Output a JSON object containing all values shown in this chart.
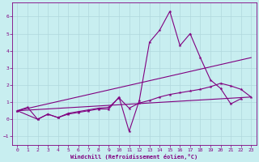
{
  "xlabel": "Windchill (Refroidissement éolien,°C)",
  "background_color": "#c8eef0",
  "line_color": "#800080",
  "grid_color": "#b0d8dc",
  "xlim": [
    -0.5,
    23.5
  ],
  "ylim": [
    -1.5,
    6.8
  ],
  "yticks": [
    -1,
    0,
    1,
    2,
    3,
    4,
    5,
    6
  ],
  "xticks": [
    0,
    1,
    2,
    3,
    4,
    5,
    6,
    7,
    8,
    9,
    10,
    11,
    12,
    13,
    14,
    15,
    16,
    17,
    18,
    19,
    20,
    21,
    22,
    23
  ],
  "series": [
    {
      "x": [
        0,
        1,
        2,
        3,
        4,
        5,
        6,
        7,
        8,
        9,
        10,
        11,
        12,
        13,
        14,
        15,
        16,
        17,
        18,
        19,
        20,
        21,
        22,
        23
      ],
      "y": [
        0.5,
        0.7,
        0.0,
        0.3,
        0.1,
        0.3,
        0.4,
        0.5,
        0.6,
        0.6,
        1.3,
        -0.7,
        1.1,
        4.5,
        5.2,
        6.3,
        4.3,
        5.0,
        3.6,
        2.3,
        1.8,
        0.9,
        1.2,
        null
      ]
    },
    {
      "x": [
        0,
        2,
        3,
        4,
        5,
        6,
        7,
        8,
        9,
        10,
        11,
        12,
        13,
        14,
        15,
        16,
        17,
        18,
        19,
        20,
        21,
        22,
        23
      ],
      "y": [
        0.5,
        0.0,
        0.3,
        0.1,
        0.35,
        0.45,
        0.55,
        0.65,
        0.7,
        1.25,
        0.65,
        0.95,
        1.1,
        1.3,
        1.45,
        1.55,
        1.65,
        1.75,
        1.9,
        2.1,
        1.95,
        1.75,
        1.3
      ]
    },
    {
      "x": [
        0,
        23
      ],
      "y": [
        0.5,
        3.6
      ]
    },
    {
      "x": [
        0,
        23
      ],
      "y": [
        0.5,
        1.3
      ]
    }
  ]
}
